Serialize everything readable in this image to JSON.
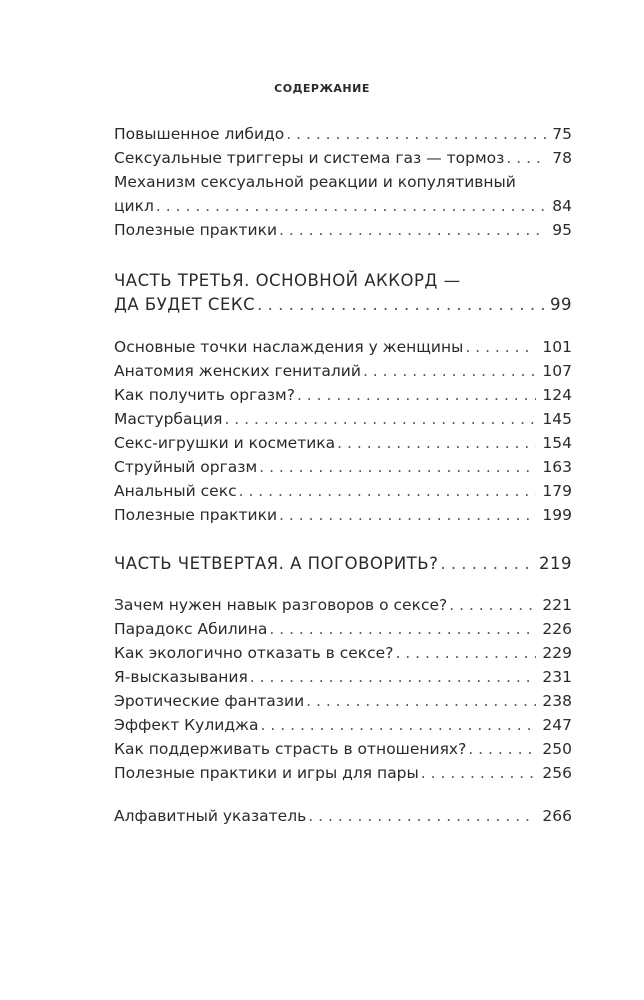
{
  "title": "СОДЕРЖАНИЕ",
  "group1": [
    {
      "t": "Повышенное либидо",
      "p": "75"
    },
    {
      "t": "Сексуальные триггеры и система газ — тормоз",
      "p": "78"
    }
  ],
  "wrap1": {
    "line1": "Механизм сексуальной реакции и копулятивный",
    "t": "цикл",
    "p": "84"
  },
  "group1b": [
    {
      "t": "Полезные практики",
      "p": "95"
    }
  ],
  "part3": {
    "line1": "ЧАСТЬ ТРЕТЬЯ. ОСНОВНОЙ АККОРД —",
    "t": "ДА БУДЕТ СЕКС",
    "p": "99"
  },
  "group2": [
    {
      "t": "Основные точки наслаждения у женщины",
      "p": "101"
    },
    {
      "t": "Анатомия женских гениталий",
      "p": "107"
    },
    {
      "t": "Как получить оргазм?",
      "p": "124"
    },
    {
      "t": "Мастурбация",
      "p": "145"
    },
    {
      "t": "Секс-игрушки и косметика",
      "p": "154"
    },
    {
      "t": "Струйный оргазм",
      "p": "163"
    },
    {
      "t": "Анальный секс",
      "p": "179"
    },
    {
      "t": "Полезные практики",
      "p": "199"
    }
  ],
  "part4": {
    "t": "ЧАСТЬ ЧЕТВЕРТАЯ. А ПОГОВОРИТЬ?",
    "p": "219"
  },
  "group3": [
    {
      "t": "Зачем нужен навык разговоров о сексе?",
      "p": "221"
    },
    {
      "t": "Парадокс Абилина",
      "p": "226"
    },
    {
      "t": "Как экологично отказать в сексе?",
      "p": "229"
    },
    {
      "t": "Я-высказывания",
      "p": "231"
    },
    {
      "t": "Эротические фантазии",
      "p": "238"
    },
    {
      "t": "Эффект Кулиджа",
      "p": "247"
    },
    {
      "t": "Как поддерживать страсть в отношениях?",
      "p": "250"
    },
    {
      "t": "Полезные практики и игры для пары",
      "p": "256"
    }
  ],
  "index": {
    "t": "Алфавитный указатель",
    "p": "266"
  }
}
